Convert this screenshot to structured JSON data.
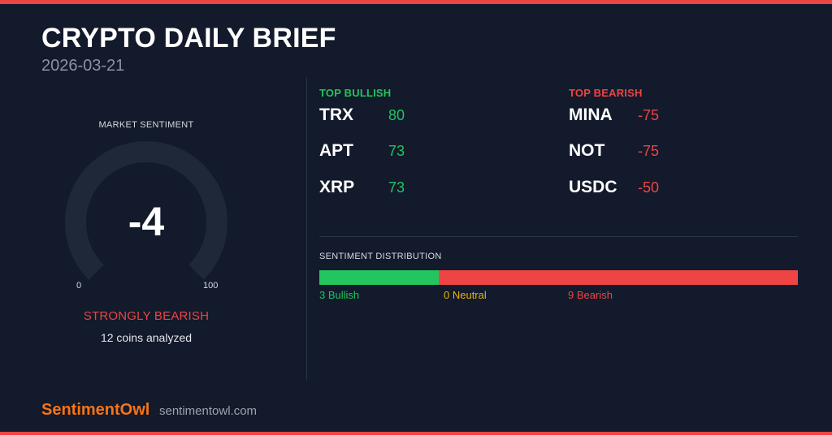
{
  "colors": {
    "background": "#121a2b",
    "accent_red": "#ef4444",
    "bullish_green": "#22c55e",
    "neutral_yellow": "#eab308",
    "brand_orange": "#f97316",
    "gauge_track": "#1e2839"
  },
  "header": {
    "title": "CRYPTO DAILY BRIEF",
    "date": "2026-03-21"
  },
  "sentiment": {
    "label": "MARKET SENTIMENT",
    "score": "-4",
    "min_label": "0",
    "max_label": "100",
    "verdict": "STRONGLY BEARISH",
    "coins_analyzed": "12 coins analyzed"
  },
  "top_bullish": {
    "heading": "TOP BULLISH",
    "items": [
      {
        "symbol": "TRX",
        "score": "80"
      },
      {
        "symbol": "APT",
        "score": "73"
      },
      {
        "symbol": "XRP",
        "score": "73"
      }
    ]
  },
  "top_bearish": {
    "heading": "TOP BEARISH",
    "items": [
      {
        "symbol": "MINA",
        "score": "-75"
      },
      {
        "symbol": "NOT",
        "score": "-75"
      },
      {
        "symbol": "USDC",
        "score": "-50"
      }
    ]
  },
  "distribution": {
    "label": "SENTIMENT DISTRIBUTION",
    "bullish": 3,
    "neutral": 0,
    "bearish": 9,
    "bullish_label": "3 Bullish",
    "neutral_label": "0 Neutral",
    "bearish_label": "9 Bearish"
  },
  "footer": {
    "brand": "SentimentOwl",
    "url": "sentimentowl.com"
  }
}
